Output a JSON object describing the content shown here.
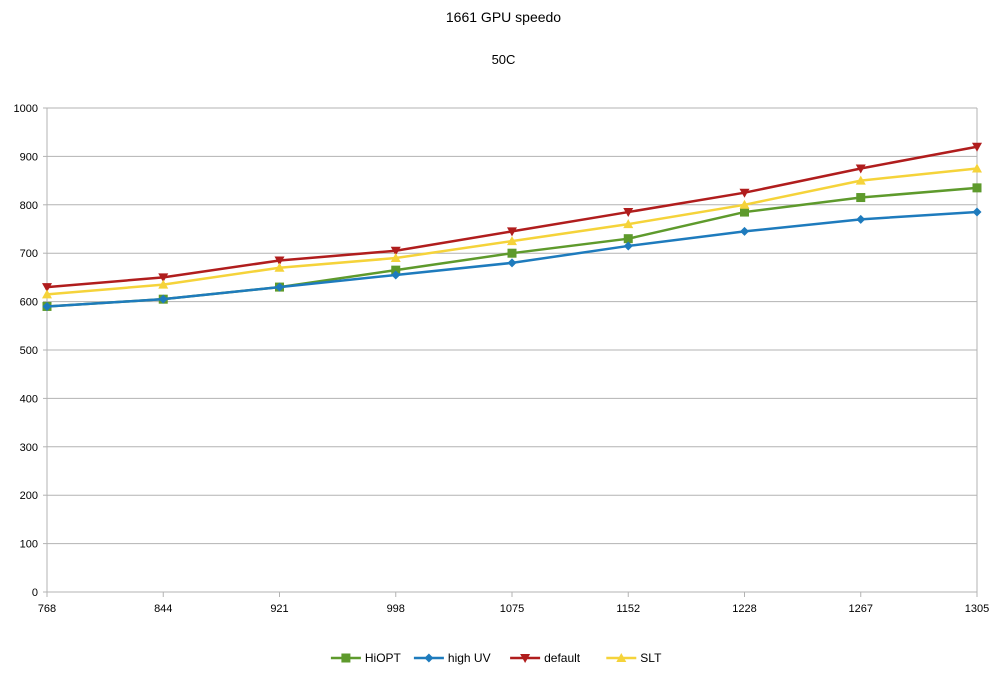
{
  "chart_data": {
    "type": "line",
    "title": "1661 GPU speedo",
    "subtitle": "50C",
    "xlabel": "",
    "ylabel": "",
    "categories": [
      "768",
      "844",
      "921",
      "998",
      "1075",
      "1152",
      "1228",
      "1267",
      "1305"
    ],
    "ylim": [
      0,
      1000
    ],
    "yticks": [
      0,
      100,
      200,
      300,
      400,
      500,
      600,
      700,
      800,
      900,
      1000
    ],
    "grid": "horizontal",
    "legend_position": "bottom",
    "series": [
      {
        "name": "HiOPT",
        "color": "#5e9a2c",
        "marker": "square",
        "values": [
          590,
          605,
          630,
          665,
          700,
          730,
          785,
          815,
          835
        ]
      },
      {
        "name": "high UV",
        "color": "#1e7bbd",
        "marker": "diamond",
        "values": [
          590,
          605,
          630,
          655,
          680,
          715,
          745,
          770,
          785
        ]
      },
      {
        "name": "default",
        "color": "#b01d1d",
        "marker": "triangle-down",
        "values": [
          630,
          650,
          685,
          705,
          745,
          785,
          825,
          875,
          920
        ]
      },
      {
        "name": "SLT",
        "color": "#f5d33a",
        "marker": "triangle-up",
        "values": [
          615,
          635,
          670,
          690,
          725,
          760,
          800,
          850,
          875
        ]
      }
    ]
  }
}
